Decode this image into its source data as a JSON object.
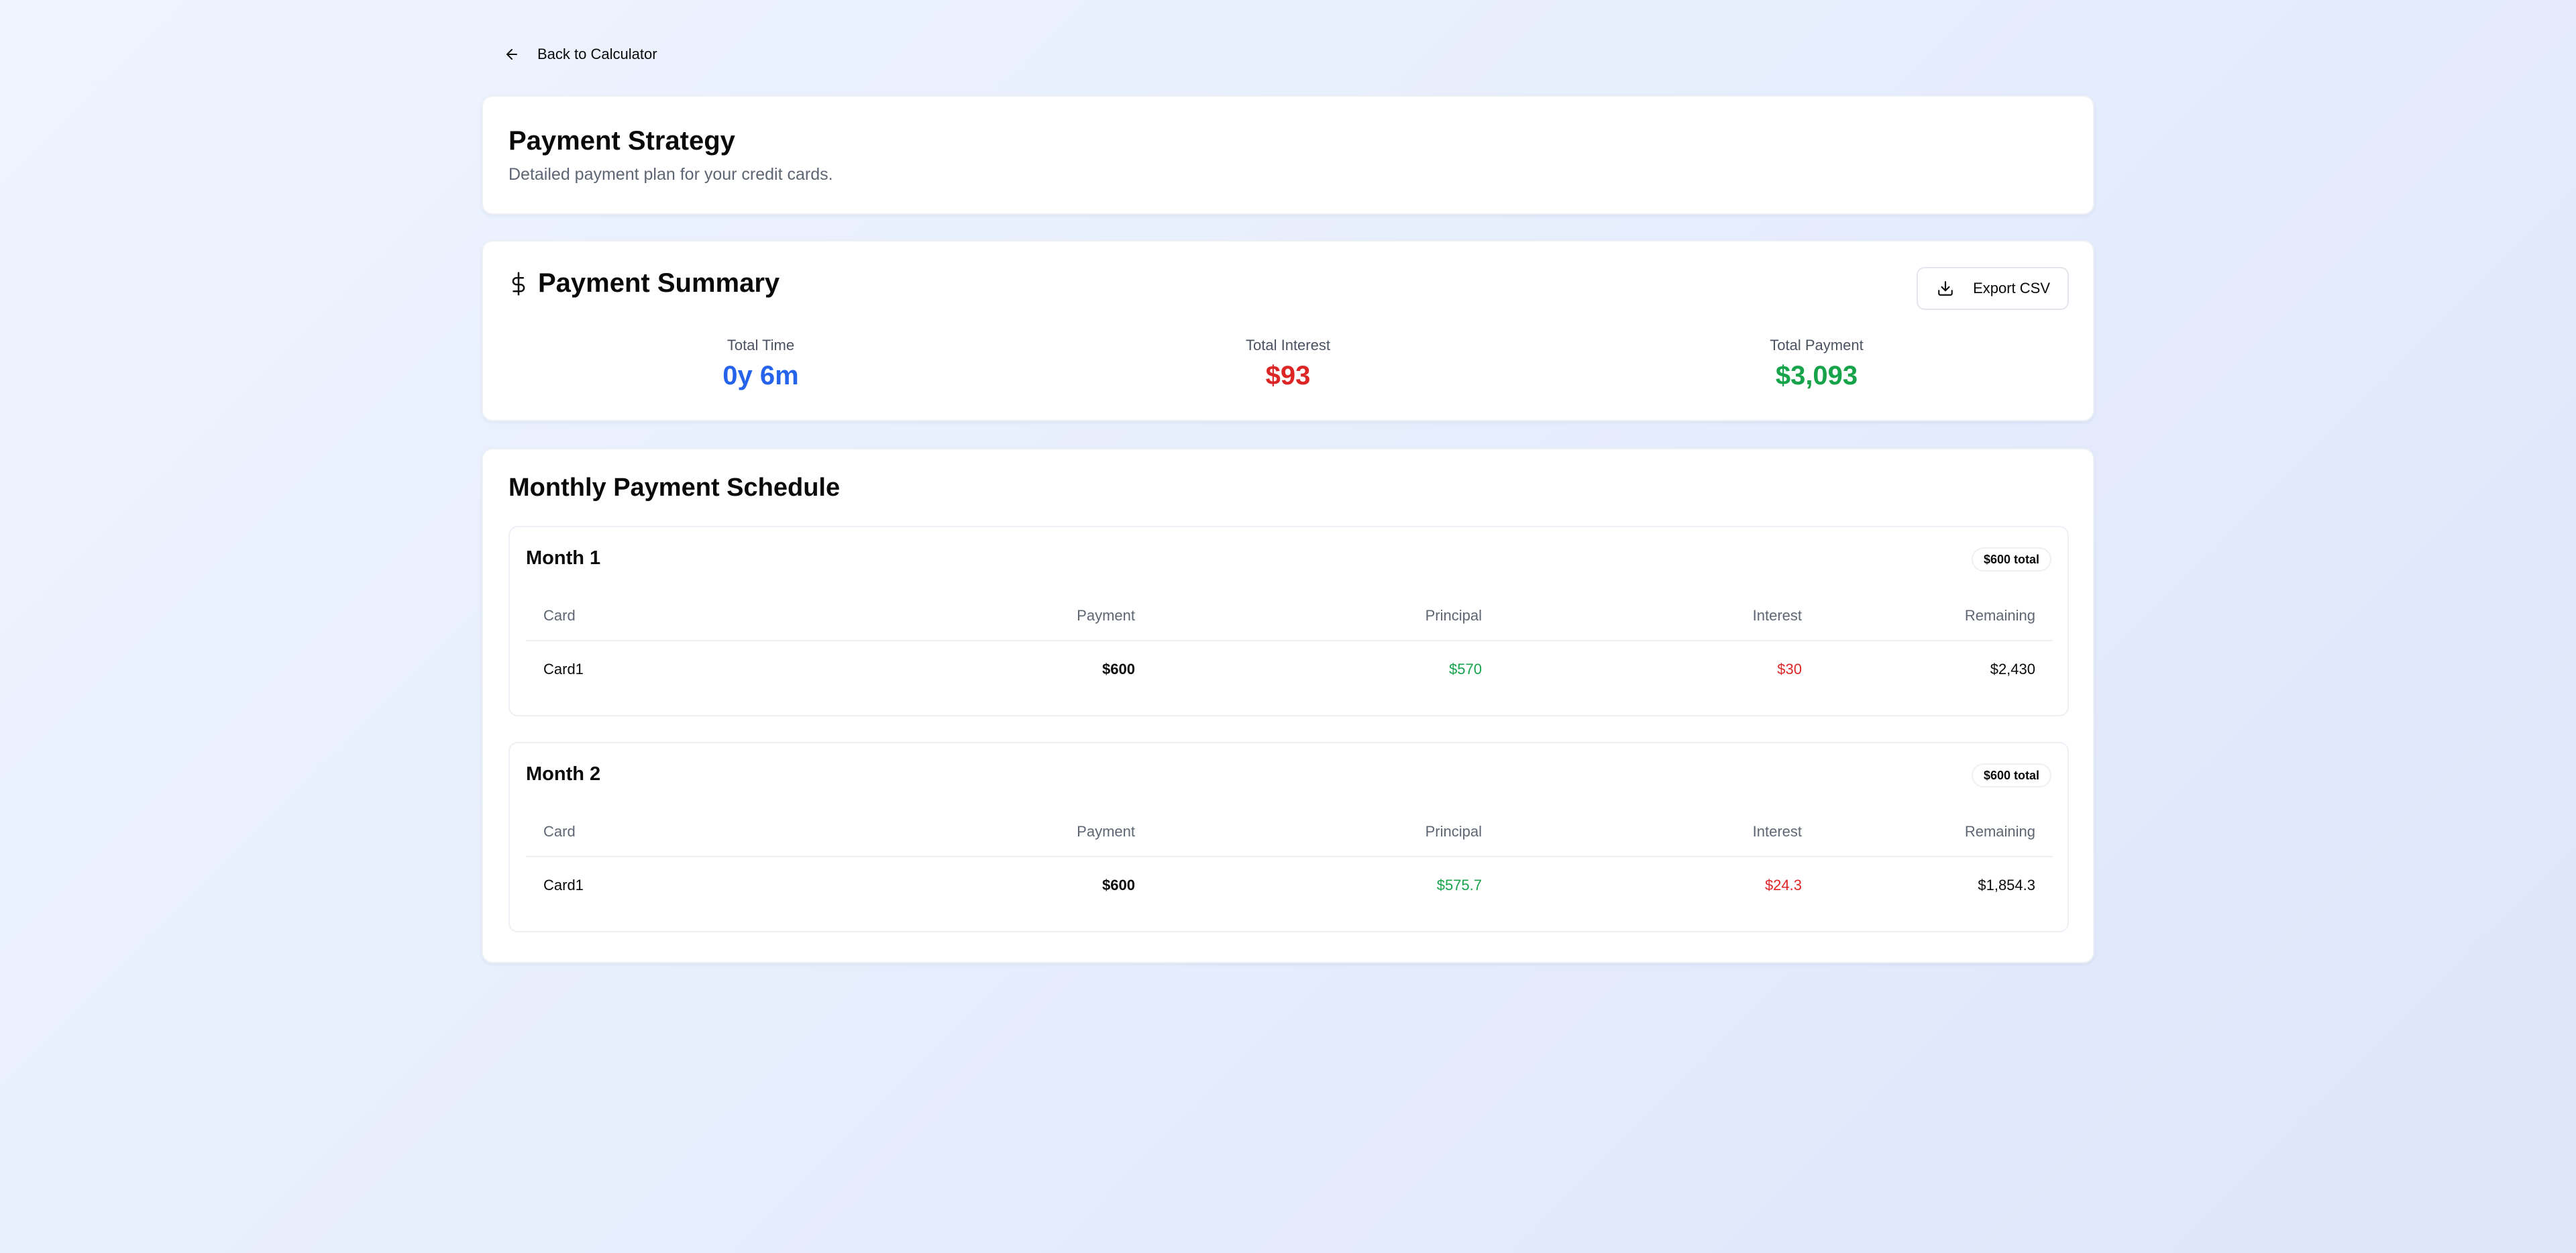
{
  "nav": {
    "back_label": "Back to Calculator"
  },
  "header": {
    "title": "Payment Strategy",
    "subtitle": "Detailed payment plan for your credit cards."
  },
  "summary": {
    "title": "Payment Summary",
    "export_label": "Export CSV",
    "stats": [
      {
        "label": "Total Time",
        "value": "0y 6m",
        "color": "#2563eb"
      },
      {
        "label": "Total Interest",
        "value": "$93",
        "color": "#dc2626"
      },
      {
        "label": "Total Payment",
        "value": "$3,093",
        "color": "#16a34a"
      }
    ]
  },
  "schedule": {
    "title": "Monthly Payment Schedule",
    "columns": [
      "Card",
      "Payment",
      "Principal",
      "Interest",
      "Remaining"
    ],
    "months": [
      {
        "title": "Month 1",
        "badge": "$600 total",
        "rows": [
          {
            "card": "Card1",
            "payment": "$600",
            "principal": "$570",
            "interest": "$30",
            "remaining": "$2,430"
          }
        ]
      },
      {
        "title": "Month 2",
        "badge": "$600 total",
        "rows": [
          {
            "card": "Card1",
            "payment": "$600",
            "principal": "$575.7",
            "interest": "$24.3",
            "remaining": "$1,854.3"
          }
        ]
      }
    ]
  },
  "colors": {
    "principal": "#16a34a",
    "interest": "#dc2626",
    "time": "#2563eb"
  }
}
